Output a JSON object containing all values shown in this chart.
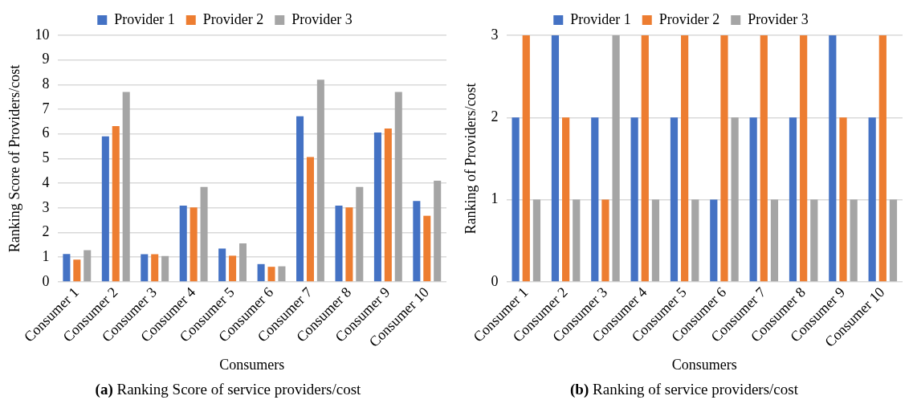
{
  "chart_data": [
    {
      "type": "bar",
      "title": "(a) Ranking Score of service providers/cost",
      "xlabel": "Consumers",
      "ylabel": "Ranking Score of Providers/cost",
      "categories": [
        "Consumer 1",
        "Consumer 2",
        "Consumer 3",
        "Consumer 4",
        "Consumer 5",
        "Consumer 6",
        "Consumer 7",
        "Consumer 8",
        "Consumer 9",
        "Consumer 10"
      ],
      "series": [
        {
          "name": "Provider 1",
          "color": "#4472c4",
          "values": [
            1.13,
            5.9,
            1.12,
            3.09,
            1.35,
            0.72,
            6.72,
            3.09,
            6.06,
            3.28
          ]
        },
        {
          "name": "Provider 2",
          "color": "#ed7d31",
          "values": [
            0.9,
            6.32,
            1.12,
            3.02,
            1.06,
            0.61,
            5.06,
            3.02,
            6.22,
            2.68
          ]
        },
        {
          "name": "Provider 3",
          "color": "#a5a5a5",
          "values": [
            1.28,
            7.7,
            1.05,
            3.85,
            1.56,
            0.63,
            8.2,
            3.85,
            7.7,
            4.1
          ]
        }
      ],
      "ylim": [
        0,
        10
      ],
      "yticks": [
        0,
        1,
        2,
        3,
        4,
        5,
        6,
        7,
        8,
        9,
        10
      ],
      "grid": "y",
      "legend": "top"
    },
    {
      "type": "bar",
      "title": "(b) Ranking of service providers/cost",
      "xlabel": "Consumers",
      "ylabel": "Ranking of Providers/cost",
      "categories": [
        "Consumer 1",
        "Consumer 2",
        "Consumer 3",
        "Consumer 4",
        "Consumer 5",
        "Consumer 6",
        "Consumer 7",
        "Consumer 8",
        "Consumer 9",
        "Consumer 10"
      ],
      "series": [
        {
          "name": "Provider 1",
          "color": "#4472c4",
          "values": [
            2,
            3,
            2,
            2,
            2,
            1,
            2,
            2,
            3,
            2
          ]
        },
        {
          "name": "Provider 2",
          "color": "#ed7d31",
          "values": [
            3,
            2,
            1,
            3,
            3,
            3,
            3,
            3,
            2,
            3
          ]
        },
        {
          "name": "Provider 3",
          "color": "#a5a5a5",
          "values": [
            1,
            1,
            3,
            1,
            1,
            2,
            1,
            1,
            1,
            1
          ]
        }
      ],
      "ylim": [
        0,
        3
      ],
      "yticks": [
        0,
        1,
        2,
        3
      ],
      "grid": "y",
      "legend": "top"
    }
  ]
}
